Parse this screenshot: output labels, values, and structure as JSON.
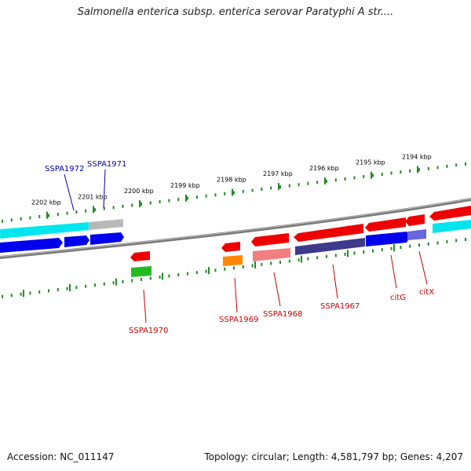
{
  "title": "Salmonella enterica subsp. enterica serovar Paratyphi A str....",
  "footer": {
    "accession": "Accession: NC_011147",
    "summary": "Topology: circular; Length: 4,581,797 bp; Genes: 4,207"
  },
  "colors": {
    "tick": "#228b22",
    "backbone": "#808080",
    "label_red": "#cc0000",
    "label_blue": "#0000aa"
  },
  "ticks": [
    {
      "kbp": 2202,
      "label": "2202 kbp"
    },
    {
      "kbp": 2201,
      "label": "2201 kbp"
    },
    {
      "kbp": 2200,
      "label": "2200 kbp"
    },
    {
      "kbp": 2199,
      "label": "2199 kbp"
    },
    {
      "kbp": 2198,
      "label": "2198 kbp"
    },
    {
      "kbp": 2197,
      "label": "2197 kbp"
    },
    {
      "kbp": 2196,
      "label": "2196 kbp"
    },
    {
      "kbp": 2195,
      "label": "2195 kbp"
    },
    {
      "kbp": 2194,
      "label": "2194 kbp"
    }
  ],
  "gene_labels": [
    {
      "name": "SSPA1972",
      "color": "blue"
    },
    {
      "name": "SSPA1971",
      "color": "blue"
    },
    {
      "name": "SSPA1970",
      "color": "red"
    },
    {
      "name": "SSPA1969",
      "color": "red"
    },
    {
      "name": "SSPA1968",
      "color": "red"
    },
    {
      "name": "SSPA1967",
      "color": "red"
    },
    {
      "name": "citG",
      "color": "red"
    },
    {
      "name": "citX",
      "color": "red"
    }
  ]
}
